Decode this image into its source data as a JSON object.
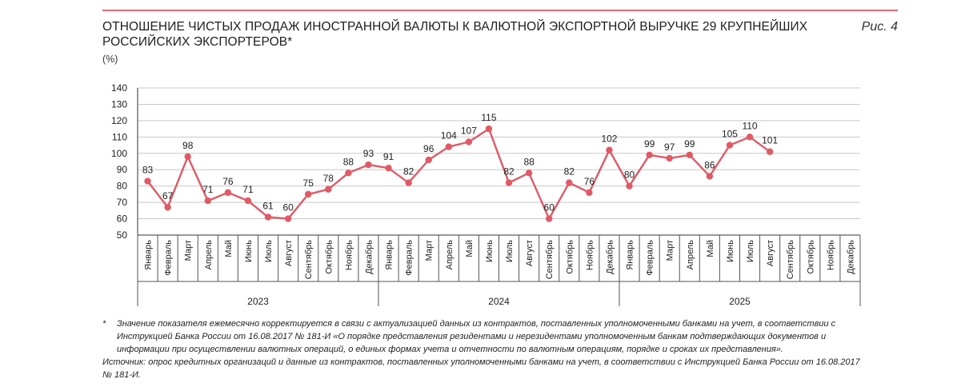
{
  "header": {
    "title": "Отношение чистых продаж иностранной валюты к валютной экспортной выручке 29 крупнейших российских экспортеров*",
    "figure_label": "Рис. 4",
    "unit": "(%)"
  },
  "chart_data": {
    "type": "line",
    "title": "Отношение чистых продаж иностранной валюты к валютной экспортной выручке 29 крупнейших российских экспортеров*",
    "ylabel": "(%)",
    "ylim": [
      50,
      140
    ],
    "yticks": [
      "140",
      "130",
      "120",
      "110",
      "100",
      "90",
      "80",
      "70",
      "60",
      "50"
    ],
    "grid": true,
    "color": "#e05a66",
    "years": [
      {
        "label": "2023",
        "months": 12
      },
      {
        "label": "2024",
        "months": 12
      },
      {
        "label": "2025",
        "months": 12
      }
    ],
    "categories": [
      "Январь",
      "Февраль",
      "Март",
      "Апрель",
      "Май",
      "Июнь",
      "Июль",
      "Август",
      "Сентябрь",
      "Октябрь",
      "Ноябрь",
      "Декабрь",
      "Январь",
      "Февраль",
      "Март",
      "Апрель",
      "Май",
      "Июнь",
      "Июль",
      "Август",
      "Сентябрь",
      "Октябрь",
      "Ноябрь",
      "Декабрь",
      "Январь",
      "Февраль",
      "Март",
      "Апрель",
      "Май",
      "Июнь",
      "Июль",
      "Август",
      "Сентябрь",
      "Октябрь",
      "Ноябрь",
      "Декабрь"
    ],
    "values": [
      83,
      67,
      98,
      71,
      76,
      71,
      61,
      60,
      75,
      78,
      88,
      93,
      91,
      82,
      96,
      104,
      107,
      115,
      82,
      88,
      60,
      82,
      76,
      102,
      80,
      99,
      97,
      99,
      86,
      105,
      110,
      101,
      null,
      null,
      null,
      null
    ]
  },
  "notes": {
    "footnote_mark": "*",
    "footnote": "Значение показателя ежемесячно корректируется в связи с актуализацией данных из контрактов, поставленных уполномоченными банками на учет, в соответствии с Инструкцией Банка России от 16.08.2017 № 181-И «О порядке представления резидентами и нерезидентами уполномоченным банкам подтверждающих документов и информации при осуществлении валютных операций, о единых формах учета и отчетности по валютным операциям, порядке и сроках их представления».",
    "source": "Источник: опрос кредитных организаций и данные из контрактов, поставленных уполномоченными банками на учет, в соответствии с Инструкцией Банка России от 16.08.2017 № 181-И."
  }
}
